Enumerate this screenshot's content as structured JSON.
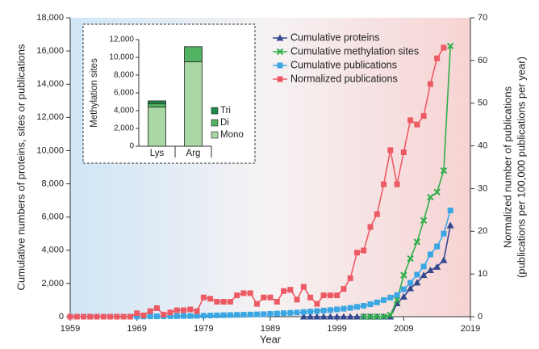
{
  "chart_data": [
    {
      "type": "line",
      "xlabel": "Year",
      "ylabel": "Cumulative numbers of proteins, sites or publications",
      "y2label": [
        "Normalized number of publications",
        "(publications per 100,000 publications per year)"
      ],
      "legend": "upper center",
      "x": [
        1959,
        1960,
        1961,
        1962,
        1963,
        1964,
        1965,
        1966,
        1967,
        1968,
        1969,
        1970,
        1971,
        1972,
        1973,
        1974,
        1975,
        1976,
        1977,
        1978,
        1979,
        1980,
        1981,
        1982,
        1983,
        1984,
        1985,
        1986,
        1987,
        1988,
        1989,
        1990,
        1991,
        1992,
        1993,
        1994,
        1995,
        1996,
        1997,
        1998,
        1999,
        2000,
        2001,
        2002,
        2003,
        2004,
        2005,
        2006,
        2007,
        2008,
        2009,
        2010,
        2011,
        2012,
        2013,
        2014,
        2015,
        2016
      ],
      "xlim": [
        1959,
        2019
      ],
      "xticks": [
        1959,
        1969,
        1979,
        1989,
        1999,
        2009,
        2019
      ],
      "ylim": [
        0,
        18000
      ],
      "yticks": [
        0,
        {
          "value": 2000,
          "label": "2,000"
        },
        {
          "value": 4000,
          "label": "4,000"
        },
        {
          "value": 6000,
          "label": "6,000"
        },
        {
          "value": 8000,
          "label": "8,000"
        },
        {
          "value": 10000,
          "label": "10,000"
        },
        {
          "value": 12000,
          "label": "12,000"
        },
        {
          "value": 14000,
          "label": "14,000"
        },
        {
          "value": 16000,
          "label": "16,000"
        },
        {
          "value": 18000,
          "label": "18,000"
        }
      ],
      "y2lim": [
        0,
        70
      ],
      "y2ticks": [
        0,
        10,
        20,
        30,
        40,
        50,
        60,
        70
      ],
      "series": [
        {
          "name": "Cumulative proteins",
          "color": "#34488c",
          "marker": "triangle",
          "values": [
            null,
            null,
            null,
            null,
            null,
            null,
            null,
            null,
            null,
            null,
            null,
            null,
            null,
            null,
            null,
            null,
            null,
            null,
            null,
            null,
            null,
            null,
            null,
            null,
            null,
            null,
            null,
            null,
            null,
            null,
            null,
            null,
            null,
            null,
            null,
            0,
            0,
            0,
            0,
            0,
            0,
            0,
            0,
            0,
            0,
            0,
            0,
            0,
            0,
            800,
            1200,
            1700,
            2050,
            2500,
            2800,
            3000,
            3400,
            5500
          ]
        },
        {
          "name": "Cumulative methylation sites",
          "color": "#2fae4a",
          "marker": "cross",
          "values": [
            null,
            null,
            null,
            null,
            null,
            null,
            null,
            null,
            null,
            null,
            null,
            null,
            null,
            null,
            null,
            null,
            null,
            null,
            null,
            null,
            null,
            null,
            null,
            null,
            null,
            null,
            null,
            null,
            null,
            null,
            null,
            null,
            null,
            null,
            null,
            null,
            null,
            null,
            null,
            null,
            null,
            null,
            null,
            null,
            0,
            0,
            0,
            0,
            100,
            1000,
            2500,
            3500,
            4500,
            5800,
            7200,
            7500,
            8800,
            16300
          ]
        },
        {
          "name": "Cumulative publications",
          "color": "#3aa7e3",
          "marker": "square",
          "values": [
            0,
            0,
            0,
            0,
            0,
            0,
            0,
            0,
            0,
            0,
            10,
            10,
            20,
            20,
            20,
            30,
            30,
            40,
            40,
            50,
            60,
            70,
            80,
            90,
            100,
            110,
            120,
            130,
            140,
            150,
            170,
            190,
            210,
            230,
            250,
            280,
            310,
            340,
            370,
            400,
            440,
            480,
            530,
            590,
            660,
            750,
            860,
            1000,
            1150,
            1300,
            1650,
            2040,
            2530,
            3020,
            3750,
            4230,
            5000,
            6400
          ]
        },
        {
          "name": "Normalized publications",
          "color": "#ec5a64",
          "marker": "square",
          "axis": "y2",
          "values": [
            0,
            0,
            0,
            0,
            0,
            0,
            0,
            0,
            0,
            0,
            0.8,
            0.3,
            1.3,
            2,
            0.5,
            1,
            1.5,
            1.5,
            1.7,
            1.3,
            4.5,
            4.2,
            3.5,
            3.5,
            3.5,
            5,
            5.5,
            5.5,
            3,
            4.5,
            4.5,
            3.5,
            6,
            6.3,
            4,
            7,
            4.5,
            3,
            5,
            5,
            5,
            6.5,
            9,
            15,
            15.5,
            21,
            24,
            31,
            39,
            31,
            38.5,
            46,
            45,
            47,
            54.5,
            60.5,
            63,
            null
          ]
        }
      ]
    },
    {
      "type": "bar",
      "stacked": true,
      "ylabel": "Methylation sites",
      "legend": "right",
      "categories": [
        "Lys",
        "Arg"
      ],
      "ylim": [
        0,
        12000
      ],
      "yticks": [
        0,
        {
          "value": 2000,
          "label": "2,000"
        },
        {
          "value": 4000,
          "label": "4,000"
        },
        {
          "value": 6000,
          "label": "6,000"
        },
        {
          "value": 8000,
          "label": "8,000"
        },
        {
          "value": 10000,
          "label": "10,000"
        },
        {
          "value": 12000,
          "label": "12,000"
        }
      ],
      "series": [
        {
          "name": "Mono",
          "color": "#a9d8a4",
          "values": [
            4400,
            9500
          ]
        },
        {
          "name": "Di",
          "color": "#52b463",
          "values": [
            400,
            1700
          ]
        },
        {
          "name": "Tri",
          "color": "#1d8a4c",
          "values": [
            300,
            0
          ]
        }
      ]
    }
  ]
}
